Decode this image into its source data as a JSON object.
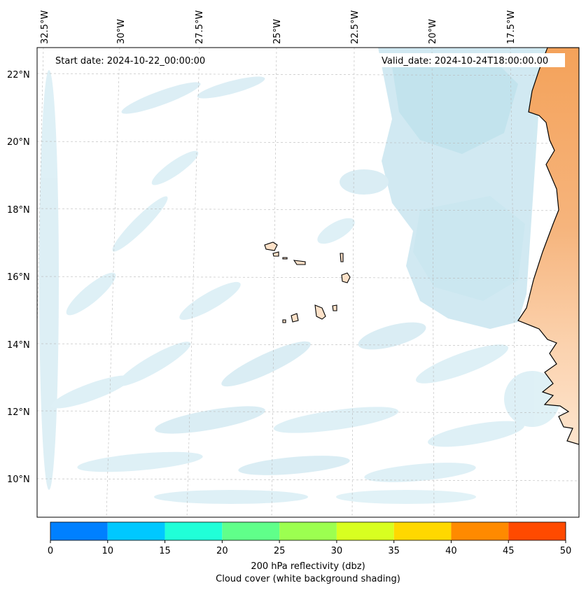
{
  "map": {
    "start_date": "Start date: 2024-10-22_00:00:00",
    "valid_date": "Valid_date: 2024-10-24T18:00:00.00",
    "lon_ticks": [
      "32.5°W",
      "30°W",
      "27.5°W",
      "25°W",
      "22.5°W",
      "20°W",
      "17.5°W"
    ],
    "lat_ticks": [
      "22°N",
      "20°N",
      "18°N",
      "16°N",
      "14°N",
      "12°N",
      "10°N"
    ],
    "land_color_dark": "#f4a25a",
    "land_color_light": "#fde1c8",
    "cloud_color": "#cfe8f1"
  },
  "colorbar": {
    "ticks": [
      "0",
      "10",
      "15",
      "20",
      "25",
      "30",
      "35",
      "40",
      "45",
      "50"
    ],
    "colors": [
      "#0080ff",
      "#00c8ff",
      "#20ffd8",
      "#60ff8a",
      "#9cff50",
      "#d8ff20",
      "#ffd800",
      "#ff8a00",
      "#ff4a00"
    ],
    "label_line1": "200 hPa reflectivity (dbz)",
    "label_line2": "Cloud cover (white background shading)"
  }
}
